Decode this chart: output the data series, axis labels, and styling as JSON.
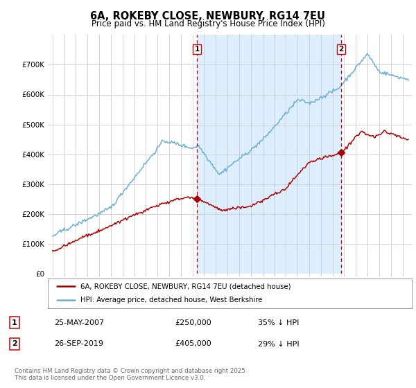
{
  "title": "6A, ROKEBY CLOSE, NEWBURY, RG14 7EU",
  "subtitle": "Price paid vs. HM Land Registry's House Price Index (HPI)",
  "footer": "Contains HM Land Registry data © Crown copyright and database right 2025.\nThis data is licensed under the Open Government Licence v3.0.",
  "legend_entry1": "6A, ROKEBY CLOSE, NEWBURY, RG14 7EU (detached house)",
  "legend_entry2": "HPI: Average price, detached house, West Berkshire",
  "sale1_label": "1",
  "sale1_date": "25-MAY-2007",
  "sale1_price": "£250,000",
  "sale1_hpi": "35% ↓ HPI",
  "sale2_label": "2",
  "sale2_date": "26-SEP-2019",
  "sale2_price": "£405,000",
  "sale2_hpi": "29% ↓ HPI",
  "hpi_color": "#6baed6",
  "hpi_fill_color": "#ddeeff",
  "price_color": "#aa0000",
  "marker_line_color": "#cc0000",
  "bg_color": "#ffffff",
  "grid_color": "#cccccc",
  "ylim": [
    0,
    800000
  ],
  "yticks": [
    0,
    100000,
    200000,
    300000,
    400000,
    500000,
    600000,
    700000
  ],
  "ytick_labels": [
    "£0",
    "£100K",
    "£200K",
    "£300K",
    "£400K",
    "£500K",
    "£600K",
    "£700K"
  ],
  "sale1_x": 2007.38,
  "sale2_x": 2019.73,
  "sale1_y": 250000,
  "sale2_y": 405000,
  "xmin": 1994.6,
  "xmax": 2025.8
}
